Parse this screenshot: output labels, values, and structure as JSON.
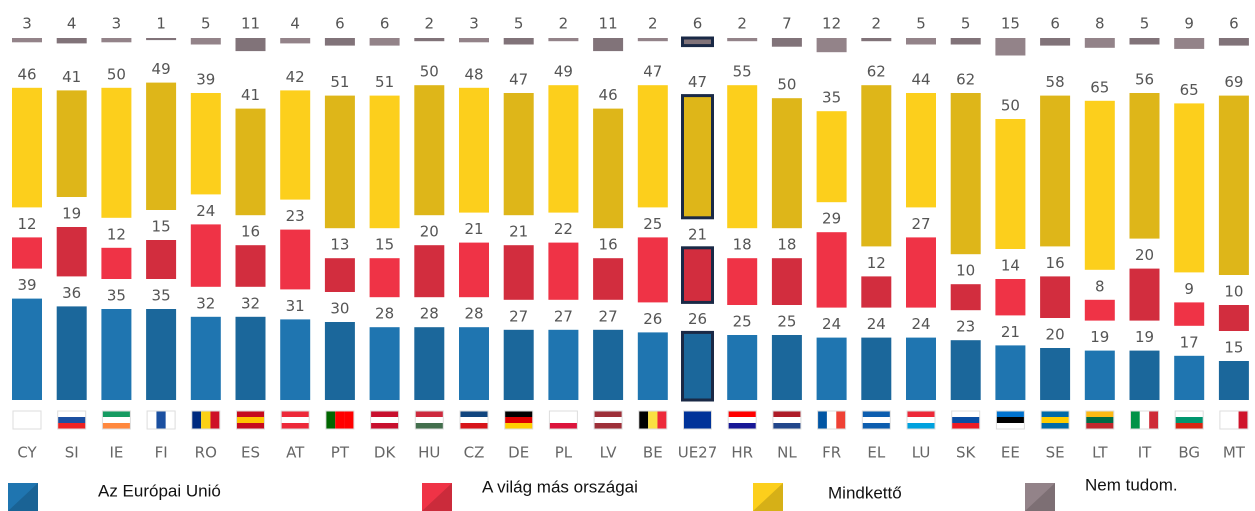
{
  "chart_data": {
    "type": "bar",
    "stacked": true,
    "categories": [
      "CY",
      "SI",
      "IE",
      "FI",
      "RO",
      "ES",
      "AT",
      "PT",
      "DK",
      "HU",
      "CZ",
      "DE",
      "PL",
      "LV",
      "BE",
      "UE27",
      "HR",
      "NL",
      "FR",
      "EL",
      "LU",
      "SK",
      "EE",
      "SE",
      "LT",
      "IT",
      "BG",
      "MT"
    ],
    "series": [
      {
        "name": "Az Európai Unió",
        "color": "#1f75b0",
        "values": [
          39,
          36,
          35,
          35,
          32,
          32,
          31,
          30,
          28,
          28,
          28,
          27,
          27,
          27,
          26,
          26,
          25,
          25,
          24,
          24,
          24,
          23,
          21,
          20,
          19,
          19,
          17,
          15
        ]
      },
      {
        "name": "A világ más országai",
        "color": "#ef3346",
        "values": [
          12,
          19,
          12,
          15,
          24,
          16,
          23,
          13,
          15,
          20,
          21,
          21,
          22,
          16,
          25,
          21,
          18,
          18,
          29,
          12,
          27,
          10,
          14,
          16,
          8,
          20,
          9,
          10
        ]
      },
      {
        "name": "Mindkettő",
        "color": "#fccf1c",
        "values": [
          46,
          41,
          50,
          49,
          39,
          41,
          42,
          51,
          51,
          50,
          48,
          47,
          49,
          46,
          47,
          47,
          55,
          50,
          35,
          62,
          44,
          62,
          50,
          58,
          65,
          56,
          65,
          69
        ]
      },
      {
        "name": "Nem tudom.",
        "color": "#938389",
        "values": [
          3,
          4,
          3,
          1,
          5,
          11,
          4,
          6,
          6,
          2,
          3,
          5,
          2,
          11,
          2,
          6,
          2,
          7,
          12,
          2,
          5,
          5,
          15,
          6,
          8,
          5,
          9,
          6
        ]
      }
    ]
  }
}
